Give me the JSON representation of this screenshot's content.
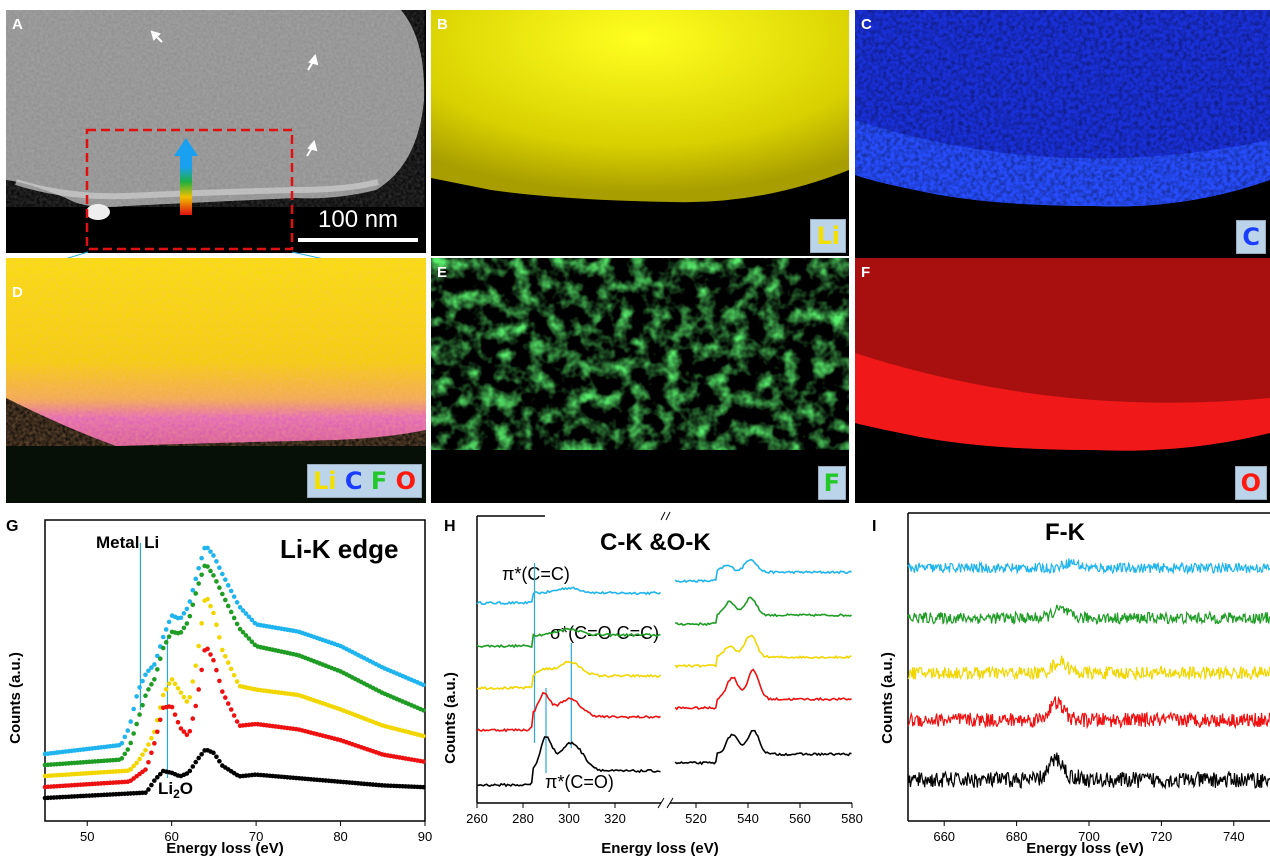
{
  "panels": {
    "a": {
      "label": "A",
      "scalebar": "100 nm"
    },
    "b": {
      "label": "B",
      "tag": "Li",
      "color": "#f4e000"
    },
    "c": {
      "label": "C",
      "tag": "C",
      "color": "#1a3cff"
    },
    "d": {
      "label": "D",
      "tag": [
        "Li",
        "C",
        "F",
        "O"
      ]
    },
    "e": {
      "label": "E",
      "tag": "F",
      "color": "#22c72a"
    },
    "f": {
      "label": "F",
      "tag": "O",
      "color": "#ff1a10"
    }
  },
  "colors": {
    "blue": "#1fb4ee",
    "green": "#1e9c24",
    "yellow": "#f2d600",
    "red": "#ee1111",
    "black": "#000000"
  },
  "chart_data": [
    {
      "panel": "G",
      "type": "scatter",
      "title": "Li-K edge",
      "xlabel": "Energy loss (eV)",
      "ylabel": "Counts (a.u.)",
      "xlim": [
        45,
        90
      ],
      "xticks": [
        50,
        60,
        70,
        80,
        90
      ],
      "annotations": [
        "Metal Li",
        "Li2O"
      ],
      "series": [
        {
          "color": "blue",
          "offset": 4,
          "x": [
            45,
            54,
            55,
            56,
            57,
            58,
            59,
            60,
            61,
            62,
            63,
            64,
            65,
            66,
            68,
            70,
            75,
            80,
            85,
            90
          ],
          "y": [
            0,
            0.5,
            1.5,
            3.5,
            4.5,
            5,
            6.5,
            7.7,
            7.5,
            8.2,
            10,
            11.6,
            11,
            10,
            8.2,
            7.2,
            6.8,
            6.0,
            4.8,
            3.8
          ]
        },
        {
          "color": "green",
          "offset": 3,
          "x": [
            45,
            54,
            55,
            56,
            57,
            58,
            59,
            60,
            61,
            62,
            63,
            64,
            65,
            66,
            68,
            70,
            75,
            80,
            85,
            90
          ],
          "y": [
            0,
            0.3,
            1,
            2.5,
            4,
            4.8,
            6.5,
            7.4,
            7.3,
            8,
            9.8,
            11.2,
            10.5,
            9.5,
            7.6,
            6.6,
            6.1,
            5.2,
            4.0,
            3.0
          ]
        },
        {
          "color": "yellow",
          "offset": 2,
          "x": [
            45,
            55,
            56,
            57,
            58,
            59,
            60,
            61,
            62,
            63,
            64,
            65,
            66,
            68,
            70,
            75,
            80,
            85,
            90
          ],
          "y": [
            0,
            0.3,
            0.8,
            1.5,
            2.5,
            4.5,
            5.4,
            4.7,
            4,
            6.5,
            10.1,
            9,
            7,
            5,
            4.8,
            4.5,
            3.7,
            2.8,
            2.2
          ]
        },
        {
          "color": "red",
          "offset": 1,
          "x": [
            45,
            55,
            57,
            58,
            59,
            60,
            61,
            62,
            63,
            64,
            65,
            66,
            68,
            70,
            75,
            80,
            85,
            90
          ],
          "y": [
            0,
            0.3,
            1,
            2.5,
            4.4,
            4.5,
            3.3,
            2.8,
            4.8,
            7.9,
            7,
            5.3,
            3.4,
            3.5,
            3.2,
            2.6,
            1.8,
            1.4
          ]
        },
        {
          "color": "black",
          "offset": 0,
          "x": [
            45,
            57,
            58,
            59,
            60,
            61,
            62,
            63,
            64,
            65,
            66,
            68,
            70,
            75,
            80,
            85,
            90
          ],
          "y": [
            0,
            0.3,
            1,
            1.5,
            1.4,
            1.2,
            1.4,
            2.1,
            2.7,
            2.5,
            1.8,
            1.2,
            1.3,
            1.1,
            0.9,
            0.7,
            0.6
          ]
        }
      ]
    },
    {
      "panel": "H",
      "type": "line",
      "title": "C-K &O-K",
      "xlabel": "Energy loss (eV)",
      "ylabel": "Counts (a.u.)",
      "segments": [
        {
          "xlim": [
            260,
            340
          ],
          "xticks": [
            260,
            280,
            300,
            320
          ]
        },
        {
          "xlim": [
            510,
            580
          ],
          "xticks": [
            520,
            540,
            560,
            580
          ]
        }
      ],
      "annotations": [
        "π*(C=C)",
        "σ*(C=O C=C)",
        "π*(C=O)"
      ],
      "series": [
        {
          "color": "blue",
          "offset": 4,
          "peaks": [
            [
              300,
              0.25
            ]
          ],
          "o_peaks": [
            [
              532,
              0.3
            ],
            [
              541,
              0.6
            ]
          ]
        },
        {
          "color": "green",
          "offset": 3,
          "peaks": [
            [
              300,
              0.3
            ]
          ],
          "o_peaks": [
            [
              533,
              0.6
            ],
            [
              541,
              0.8
            ]
          ]
        },
        {
          "color": "yellow",
          "offset": 2,
          "peaks": [
            [
              289,
              0.3
            ],
            [
              300,
              0.7
            ]
          ],
          "o_peaks": [
            [
              533,
              0.5
            ],
            [
              541,
              1.0
            ]
          ]
        },
        {
          "color": "red",
          "offset": 1,
          "peaks": [
            [
              289,
              1.1
            ],
            [
              300,
              0.9
            ]
          ],
          "o_peaks": [
            [
              534,
              1.0
            ],
            [
              542,
              1.3
            ]
          ]
        },
        {
          "color": "black",
          "offset": 0,
          "peaks": [
            [
              290,
              1.6
            ],
            [
              301,
              1.4
            ]
          ],
          "o_peaks": [
            [
              534,
              0.9
            ],
            [
              542,
              1.1
            ]
          ]
        }
      ]
    },
    {
      "panel": "I",
      "type": "line",
      "title": "F-K",
      "xlabel": "Energy loss (eV)",
      "ylabel": "Counts (a.u.)",
      "xlim": [
        650,
        750
      ],
      "xticks": [
        660,
        680,
        700,
        720,
        740
      ],
      "series": [
        {
          "color": "blue",
          "offset": 4,
          "peak": [
            695,
            0.4
          ]
        },
        {
          "color": "green",
          "offset": 3,
          "peak": [
            692,
            0.6
          ]
        },
        {
          "color": "yellow",
          "offset": 2,
          "peak": [
            692,
            0.8
          ]
        },
        {
          "color": "red",
          "offset": 1,
          "peak": [
            691,
            1.2
          ]
        },
        {
          "color": "black",
          "offset": 0,
          "peak": [
            691,
            1.5
          ]
        }
      ]
    }
  ]
}
